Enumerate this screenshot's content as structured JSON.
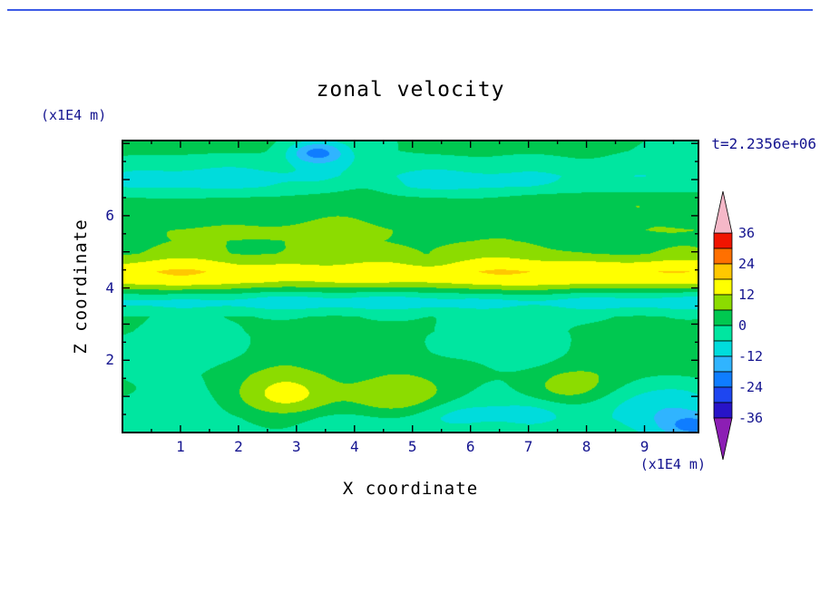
{
  "title": "zonal velocity",
  "t_label": "t=2.2356e+06",
  "x_axis": {
    "title": "X coordinate",
    "unit": "(x1E4 m)",
    "tick_labels": [
      1,
      2,
      3,
      4,
      5,
      6,
      7,
      8,
      9
    ],
    "minor_step": 0.5
  },
  "y_axis": {
    "title": "Z coordinate",
    "unit": "(x1E4 m)",
    "tick_labels": [
      2,
      4,
      6
    ],
    "minor_step": 0.5
  },
  "colorbar": {
    "labels": [
      "36",
      "24",
      "12",
      "0",
      "-12",
      "-24",
      "-36"
    ],
    "over_color": "#f5b8c8",
    "under_color": "#8c1eb4"
  },
  "text_colors": {
    "labels": "#13138f",
    "titles": "#000000"
  },
  "chart_data": {
    "type": "heatmap",
    "title": "zonal velocity",
    "xlabel": "X coordinate (x1E4 m)",
    "ylabel": "Z coordinate (x1E4 m)",
    "time_annotation": "t=2.2356e+06",
    "x_range": [
      0,
      9.93
    ],
    "z_range": [
      0,
      8.08
    ],
    "levels": [
      -36,
      -30,
      -24,
      -18,
      -12,
      -6,
      0,
      6,
      12,
      18,
      24,
      30,
      36
    ],
    "palette": [
      "#8c1eb4",
      "#2814c8",
      "#1e46f0",
      "#0f7dff",
      "#30b4ff",
      "#00dcdc",
      "#00e6a0",
      "#00c850",
      "#8cdc00",
      "#ffff00",
      "#ffc800",
      "#ff7000",
      "#f01400",
      "#f5b8c8"
    ],
    "field": {
      "comment": "u(x,z) = linear interp of mean_profile over z + gaussian anomalies + sinusoidal texture; units m/s",
      "mean_profile": {
        "z": [
          0,
          0.4,
          1.0,
          1.6,
          2.2,
          2.8,
          3.2,
          3.45,
          3.6,
          3.75,
          3.95,
          4.15,
          4.45,
          4.7,
          4.95,
          5.3,
          5.6,
          6.0,
          6.45,
          6.8,
          7.1,
          7.45,
          7.8,
          8.08
        ],
        "u": [
          -2,
          -3,
          -0.5,
          2,
          1,
          1.5,
          0,
          -6,
          -9,
          -5,
          4,
          13,
          16,
          12,
          6,
          3.5,
          4.5,
          2,
          2,
          -4.5,
          -5.5,
          -2.5,
          0.5,
          1
        ]
      },
      "anomalies": [
        {
          "x": 3.35,
          "z": 7.75,
          "sx": 0.35,
          "sz": 0.22,
          "amp": -19
        },
        {
          "x": 1.6,
          "z": 7.1,
          "sx": 1.1,
          "sz": 0.3,
          "amp": -3
        },
        {
          "x": 5.2,
          "z": 6.95,
          "sx": 1.3,
          "sz": 0.3,
          "amp": -3
        },
        {
          "x": 4.15,
          "z": 6.9,
          "sx": 0.4,
          "sz": 0.25,
          "amp": 5
        },
        {
          "x": 2.5,
          "z": 5.5,
          "sx": 1.4,
          "sz": 0.3,
          "amp": 4
        },
        {
          "x": 5.9,
          "z": 5.15,
          "sx": 0.9,
          "sz": 0.25,
          "amp": 3
        },
        {
          "x": 7.9,
          "z": 6.3,
          "sx": 0.9,
          "sz": 0.3,
          "amp": 4.5
        },
        {
          "x": 9.05,
          "z": 4.4,
          "sx": 0.85,
          "sz": 0.3,
          "amp": 3
        },
        {
          "x": 2.85,
          "z": 1.0,
          "sx": 0.55,
          "sz": 0.45,
          "amp": 15
        },
        {
          "x": 4.6,
          "z": 0.95,
          "sx": 0.6,
          "sz": 0.4,
          "amp": 13
        },
        {
          "x": 7.75,
          "z": 1.25,
          "sx": 0.5,
          "sz": 0.35,
          "amp": 9
        },
        {
          "x": 5.75,
          "z": 0.5,
          "sx": 0.55,
          "sz": 0.3,
          "amp": -7
        },
        {
          "x": 7.1,
          "z": 0.55,
          "sx": 0.45,
          "sz": 0.3,
          "amp": -7
        },
        {
          "x": 9.1,
          "z": 0.8,
          "sx": 0.7,
          "sz": 0.45,
          "amp": -8
        },
        {
          "x": 9.85,
          "z": 0.15,
          "sx": 0.4,
          "sz": 0.25,
          "amp": -15
        },
        {
          "x": 0.6,
          "z": 0.6,
          "sx": 0.6,
          "sz": 0.35,
          "amp": -4
        },
        {
          "x": 0.35,
          "z": 1.9,
          "sx": 0.5,
          "sz": 0.35,
          "amp": -5
        },
        {
          "x": 1.35,
          "z": 2.6,
          "sx": 0.6,
          "sz": 0.3,
          "amp": -4
        },
        {
          "x": 6.3,
          "z": 2.6,
          "sx": 1.0,
          "sz": 0.4,
          "amp": -3
        }
      ],
      "texture": [
        [
          1.7,
          1.05,
          1.6,
          0.7,
          1.1
        ],
        [
          1.2,
          2.2,
          0.85,
          2.4,
          0.4
        ],
        [
          0.8,
          3.6,
          2.5,
          4.1,
          2.3
        ]
      ]
    }
  }
}
